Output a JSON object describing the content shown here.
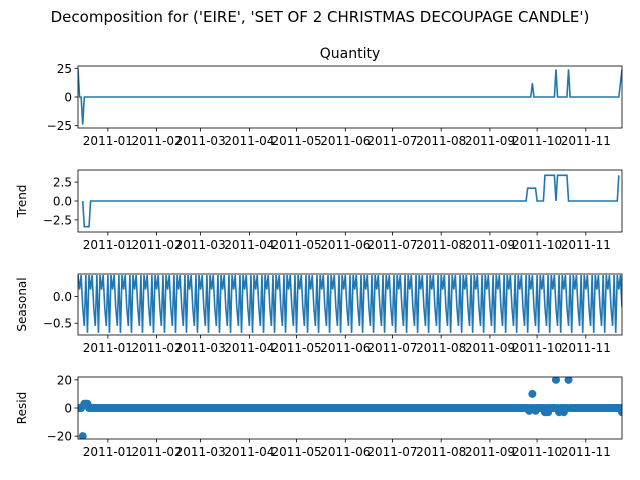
{
  "title": "Decomposition for ('EIRE', 'SET OF 2 CHRISTMAS DECOUPAGE CANDLE')",
  "chart_data": [
    {
      "panel": "observed",
      "type": "line",
      "title": "Quantity",
      "ylabel": "",
      "ylim": [
        -27,
        27
      ],
      "yticks": [
        25,
        0,
        -25
      ],
      "ytick_labels": [
        "25",
        "0",
        "−25"
      ],
      "xlim": [
        "2010-12-13",
        "2011-11-24"
      ],
      "color": "#1f77b4",
      "points": [
        [
          "2010-12-13",
          24
        ],
        [
          "2010-12-14",
          0
        ],
        [
          "2010-12-15",
          0
        ],
        [
          "2010-12-16",
          -24
        ],
        [
          "2010-12-17",
          0
        ],
        [
          "2011-09-27",
          0
        ],
        [
          "2011-09-28",
          12
        ],
        [
          "2011-09-29",
          0
        ],
        [
          "2011-10-12",
          0
        ],
        [
          "2011-10-13",
          24
        ],
        [
          "2011-10-14",
          0
        ],
        [
          "2011-10-20",
          0
        ],
        [
          "2011-10-21",
          24
        ],
        [
          "2011-10-22",
          0
        ],
        [
          "2011-11-22",
          0
        ],
        [
          "2011-11-24",
          24
        ]
      ]
    },
    {
      "panel": "trend",
      "type": "line",
      "title": "",
      "ylabel": "Trend",
      "ylim": [
        -4.1,
        4.1
      ],
      "yticks": [
        2.5,
        0.0,
        -2.5
      ],
      "ytick_labels": [
        "2.5",
        "0.0",
        "−2.5"
      ],
      "xlim": [
        "2010-12-13",
        "2011-11-24"
      ],
      "color": "#1f77b4",
      "points": [
        [
          "2010-12-16",
          0
        ],
        [
          "2010-12-17",
          -3.4
        ],
        [
          "2010-12-20",
          -3.4
        ],
        [
          "2010-12-21",
          0
        ],
        [
          "2011-09-24",
          0
        ],
        [
          "2011-09-25",
          1.7
        ],
        [
          "2011-09-30",
          1.7
        ],
        [
          "2011-10-01",
          0
        ],
        [
          "2011-10-05",
          0
        ],
        [
          "2011-10-06",
          3.4
        ],
        [
          "2011-10-12",
          3.4
        ],
        [
          "2011-10-13",
          0
        ],
        [
          "2011-10-14",
          3.4
        ],
        [
          "2011-10-20",
          3.4
        ],
        [
          "2011-10-21",
          0
        ],
        [
          "2011-11-21",
          0
        ],
        [
          "2011-11-22",
          3.4
        ]
      ]
    },
    {
      "panel": "seasonal",
      "type": "line",
      "title": "",
      "ylabel": "Seasonal",
      "ylim": [
        -0.72,
        0.42
      ],
      "yticks": [
        0.0,
        -0.5
      ],
      "ytick_labels": [
        "0.0",
        "−0.5"
      ],
      "xlim": [
        "2010-12-13",
        "2011-11-24"
      ],
      "color": "#1f77b4",
      "period": 7,
      "start": "2010-12-13",
      "end": "2011-11-24",
      "pattern": [
        0.4,
        0.13,
        0.4,
        -0.2,
        -0.55,
        0.4,
        -0.68
      ]
    },
    {
      "panel": "resid",
      "type": "scatter",
      "title": "",
      "ylabel": "Resid",
      "ylim": [
        -22,
        22
      ],
      "yticks": [
        20,
        0,
        -20
      ],
      "ytick_labels": [
        "20",
        "0",
        "−20"
      ],
      "xlim": [
        "2010-12-13",
        "2011-11-24"
      ],
      "color": "#1f77b4",
      "start": "2010-12-13",
      "end": "2011-11-24",
      "baseline": 0,
      "outliers": [
        [
          "2010-12-16",
          -20
        ],
        [
          "2010-12-17",
          3
        ],
        [
          "2010-12-18",
          3
        ],
        [
          "2010-12-19",
          3
        ],
        [
          "2011-09-28",
          10
        ],
        [
          "2011-10-13",
          20
        ],
        [
          "2011-10-21",
          20
        ],
        [
          "2011-09-26",
          -2
        ],
        [
          "2011-09-30",
          -2
        ],
        [
          "2011-10-06",
          -3
        ],
        [
          "2011-10-08",
          -3
        ],
        [
          "2011-10-15",
          -3
        ],
        [
          "2011-10-18",
          -3
        ],
        [
          "2011-11-24",
          -3
        ]
      ]
    }
  ],
  "x_tick_labels": [
    {
      "date": "2011-01-01",
      "label": "2011-01"
    },
    {
      "date": "2011-02-01",
      "label": "2011-02"
    },
    {
      "date": "2011-03-01",
      "label": "2011-03"
    },
    {
      "date": "2011-04-01",
      "label": "2011-04"
    },
    {
      "date": "2011-05-01",
      "label": "2011-05"
    },
    {
      "date": "2011-06-01",
      "label": "2011-06"
    },
    {
      "date": "2011-07-01",
      "label": "2011-07"
    },
    {
      "date": "2011-08-01",
      "label": "2011-08"
    },
    {
      "date": "2011-09-01",
      "label": "2011-09"
    },
    {
      "date": "2011-10-01",
      "label": "2011-10"
    },
    {
      "date": "2011-11-01",
      "label": "2011-11"
    }
  ]
}
